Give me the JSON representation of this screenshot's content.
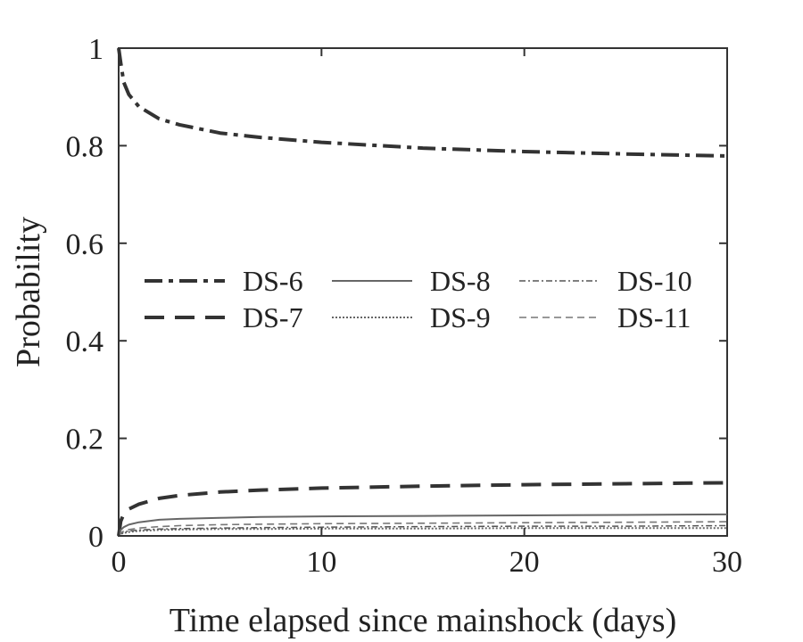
{
  "chart_data": {
    "type": "line",
    "title": "",
    "xlabel": "Time elapsed since mainshock (days)",
    "ylabel": "Probability",
    "xlim": [
      0,
      30
    ],
    "ylim": [
      0,
      1
    ],
    "xticks": [
      0,
      10,
      20,
      30
    ],
    "xtick_labels": [
      "0",
      "10",
      "20",
      "30"
    ],
    "yticks": [
      0,
      0.2,
      0.4,
      0.6,
      0.8,
      1
    ],
    "ytick_labels": [
      "0",
      "0.2",
      "0.4",
      "0.6",
      "0.8",
      "1"
    ],
    "grid": false,
    "legend_position": "center",
    "x": [
      0,
      0.1,
      0.25,
      0.5,
      1,
      2,
      3,
      5,
      7,
      10,
      15,
      20,
      25,
      30
    ],
    "series": [
      {
        "name": "DS-6",
        "color": "#333333",
        "style": "dash-dot",
        "values": [
          1.0,
          0.97,
          0.93,
          0.905,
          0.88,
          0.855,
          0.843,
          0.826,
          0.817,
          0.807,
          0.795,
          0.788,
          0.783,
          0.779
        ]
      },
      {
        "name": "DS-7",
        "color": "#333333",
        "style": "dashed",
        "values": [
          0.0,
          0.03,
          0.045,
          0.055,
          0.065,
          0.077,
          0.083,
          0.09,
          0.094,
          0.098,
          0.102,
          0.105,
          0.107,
          0.109
        ]
      },
      {
        "name": "DS-8",
        "color": "#666666",
        "style": "solid",
        "values": [
          0.0,
          0.012,
          0.018,
          0.023,
          0.028,
          0.033,
          0.035,
          0.037,
          0.039,
          0.04,
          0.041,
          0.042,
          0.043,
          0.044
        ]
      },
      {
        "name": "DS-9",
        "color": "#666666",
        "style": "dotted",
        "values": [
          0.0,
          0.004,
          0.006,
          0.008,
          0.01,
          0.012,
          0.013,
          0.014,
          0.014,
          0.015,
          0.015,
          0.016,
          0.016,
          0.016
        ]
      },
      {
        "name": "DS-10",
        "color": "#555555",
        "style": "dash-dot-thin",
        "values": [
          0.0,
          0.005,
          0.008,
          0.01,
          0.012,
          0.014,
          0.015,
          0.016,
          0.017,
          0.018,
          0.019,
          0.02,
          0.02,
          0.021
        ]
      },
      {
        "name": "DS-11",
        "color": "#777777",
        "style": "dashed-thin",
        "values": [
          0.0,
          0.006,
          0.01,
          0.013,
          0.016,
          0.019,
          0.021,
          0.023,
          0.024,
          0.025,
          0.026,
          0.027,
          0.028,
          0.029
        ]
      }
    ]
  }
}
